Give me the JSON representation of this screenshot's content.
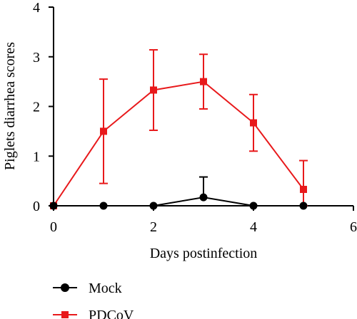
{
  "chart_data": {
    "type": "line",
    "xlabel": "Days postinfection",
    "ylabel": "Piglets diarrhea scores",
    "xlim": [
      0,
      6
    ],
    "ylim": [
      0,
      4
    ],
    "x_ticks": [
      "0",
      "2",
      "4",
      "6"
    ],
    "y_ticks": [
      "0",
      "1",
      "2",
      "3",
      "4"
    ],
    "grid": false,
    "legend_position": "bottom-left",
    "series": [
      {
        "name": "Mock",
        "color": "#000000",
        "marker": "circle",
        "x": [
          0,
          1,
          2,
          3,
          4,
          5
        ],
        "values": [
          0,
          0,
          0,
          0.17,
          0,
          0
        ],
        "error": [
          0,
          0,
          0,
          0.41,
          0,
          0
        ]
      },
      {
        "name": "PDCoV",
        "color": "#e8191b",
        "marker": "square",
        "x": [
          0,
          1,
          2,
          3,
          4,
          5
        ],
        "values": [
          0,
          1.5,
          2.33,
          2.5,
          1.67,
          0.33
        ],
        "error": [
          0,
          1.05,
          0.81,
          0.55,
          0.57,
          0.58
        ]
      }
    ]
  }
}
